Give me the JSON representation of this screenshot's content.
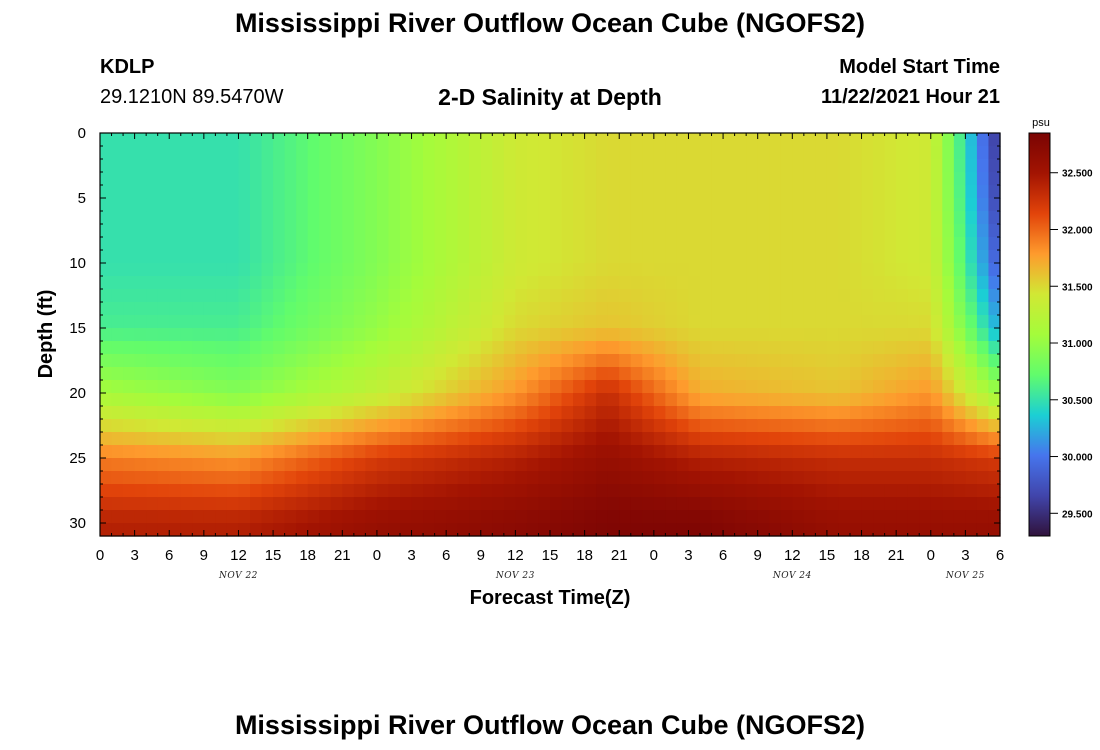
{
  "header": {
    "title": "Mississippi River Outflow Ocean Cube (NGOFS2)",
    "station_id": "KDLP",
    "coordinates": "29.1210N  89.5470W",
    "subtitle": "2-D Salinity at Depth",
    "model_start_label": "Model Start Time",
    "model_start_value": "11/22/2021 Hour 21"
  },
  "footer": {
    "title": "Mississippi River Outflow Ocean Cube (NGOFS2)"
  },
  "chart_data": {
    "type": "heatmap",
    "title": "2-D Salinity at Depth",
    "xlabel": "Forecast Time(Z)",
    "ylabel": "Depth (ft)",
    "x_range_hours": [
      0,
      78
    ],
    "x_ticks": [
      "0",
      "3",
      "6",
      "9",
      "12",
      "15",
      "18",
      "21",
      "0",
      "3",
      "6",
      "9",
      "12",
      "15",
      "18",
      "21",
      "0",
      "3",
      "6",
      "9",
      "12",
      "15",
      "18",
      "21",
      "0",
      "3",
      "6"
    ],
    "date_labels": [
      {
        "label": "NOV 22",
        "at_hour": 12
      },
      {
        "label": "NOV 23",
        "at_hour": 36
      },
      {
        "label": "NOV 24",
        "at_hour": 60
      },
      {
        "label": "NOV 25",
        "at_hour": 75
      }
    ],
    "y_range_ft": [
      0,
      31
    ],
    "y_ticks": [
      0,
      5,
      10,
      15,
      20,
      25,
      30
    ],
    "colorbar": {
      "unit": "psu",
      "min": 29.3,
      "max": 32.85,
      "ticks": [
        "29.500",
        "30.000",
        "30.500",
        "31.000",
        "31.500",
        "32.000",
        "32.500"
      ],
      "colors": [
        "#30123b",
        "#4145ab",
        "#4675ed",
        "#1bcfd4",
        "#61fc6c",
        "#a4fc3b",
        "#d1e834",
        "#fe9b2d",
        "#e2440a",
        "#a31402",
        "#7a0403"
      ]
    },
    "depth_levels_ft": [
      0,
      5,
      10,
      15,
      20,
      25,
      30
    ],
    "salinity_psu": {
      "hour_0": [
        30.5,
        30.5,
        30.5,
        30.6,
        31.1,
        31.9,
        32.4
      ],
      "hour_12": [
        30.5,
        30.5,
        30.5,
        30.6,
        30.9,
        31.8,
        32.4
      ],
      "hour_24": [
        30.9,
        30.9,
        30.9,
        31.0,
        31.3,
        32.2,
        32.6
      ],
      "hour_36": [
        31.4,
        31.4,
        31.4,
        31.5,
        31.8,
        32.4,
        32.7
      ],
      "hour_44": [
        31.5,
        31.5,
        31.5,
        31.6,
        32.3,
        32.6,
        32.8
      ],
      "hour_52": [
        31.5,
        31.5,
        31.5,
        31.5,
        31.7,
        32.4,
        32.8
      ],
      "hour_64": [
        31.5,
        31.5,
        31.5,
        31.5,
        31.6,
        32.3,
        32.6
      ],
      "hour_72": [
        31.4,
        31.4,
        31.4,
        31.5,
        31.8,
        32.3,
        32.6
      ],
      "hour_78": [
        29.5,
        29.6,
        29.8,
        30.2,
        31.0,
        32.2,
        32.6
      ]
    }
  }
}
